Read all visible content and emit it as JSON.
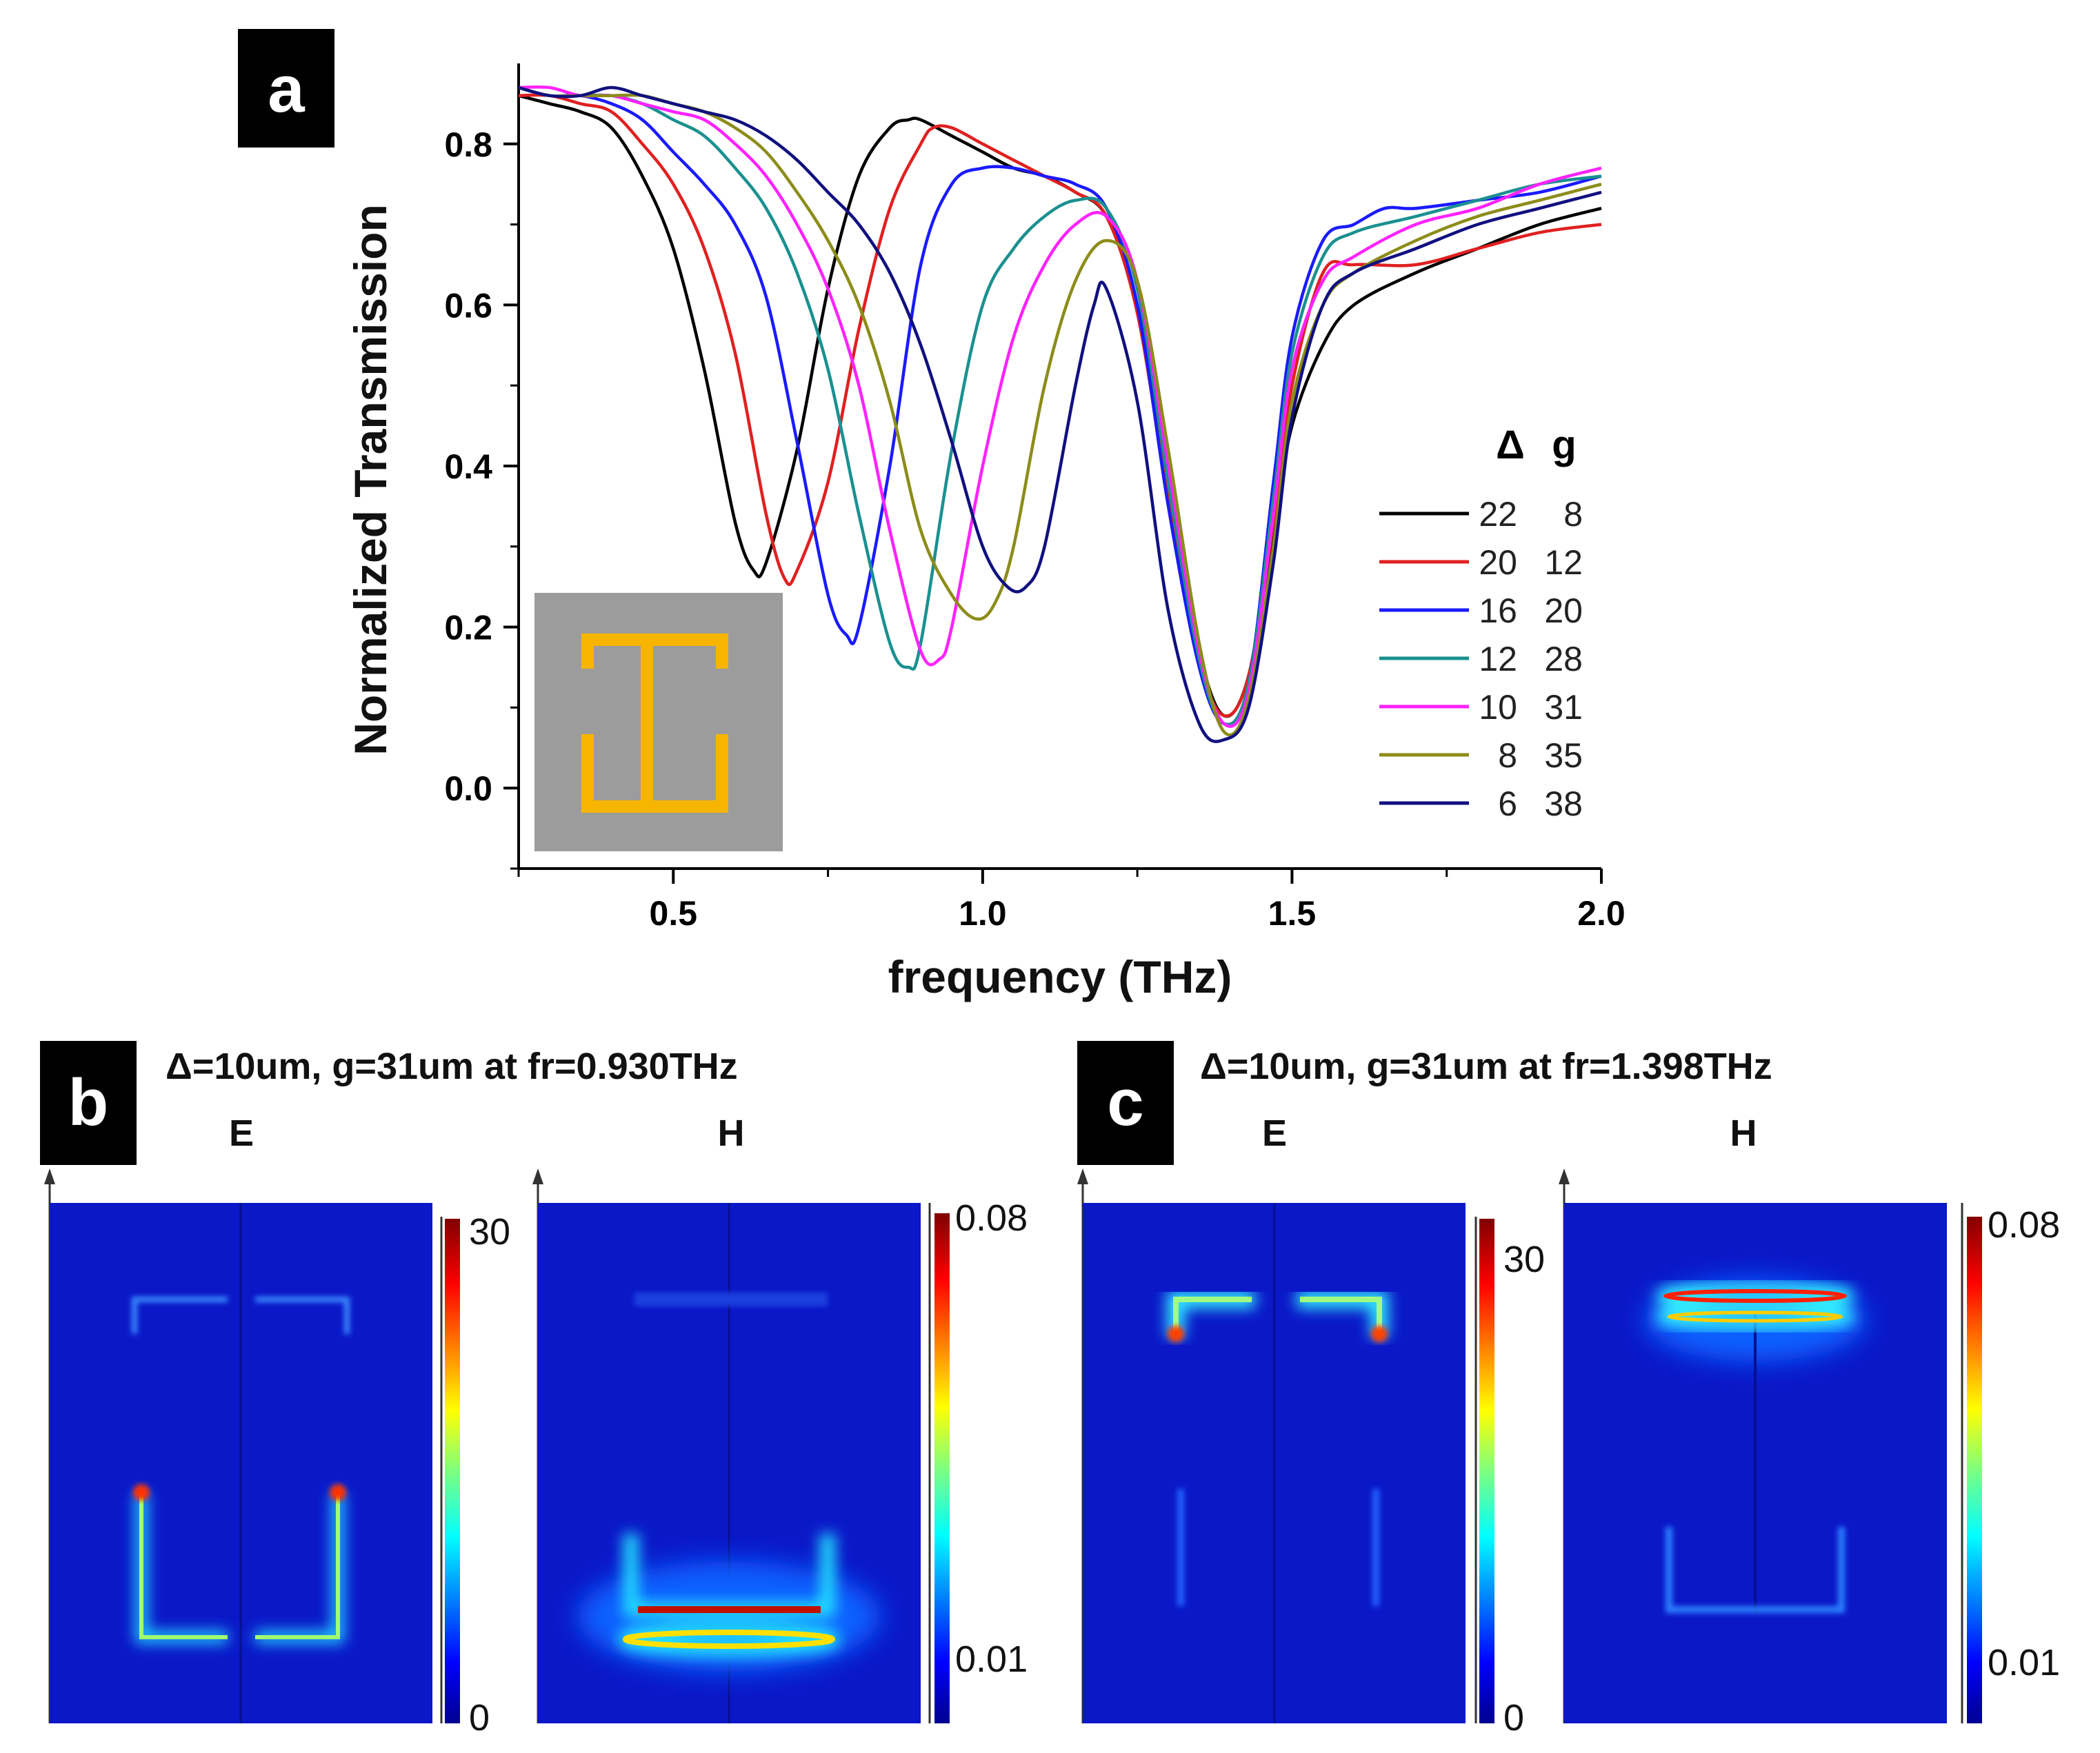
{
  "panels": {
    "a": {
      "label": "a"
    },
    "b": {
      "label": "b",
      "title": "Δ=10um, g=31um at fr=0.930THz",
      "e_label": "E",
      "h_label": "H",
      "e_scale": {
        "max": "30",
        "min": "0"
      },
      "h_scale": {
        "max": "0.08",
        "min": "0.01"
      }
    },
    "c": {
      "label": "c",
      "title": "Δ=10um, g=31um at fr=1.398THz",
      "e_label": "E",
      "h_label": "H",
      "e_scale": {
        "max": "30",
        "min": "0"
      },
      "h_scale": {
        "max": "0.08",
        "min": "0.01"
      }
    }
  },
  "legend": {
    "header_delta": "Δ",
    "header_g": "g"
  },
  "chart_data": {
    "type": "line",
    "title": "",
    "xlabel": "frequency (THz)",
    "ylabel": "Normalized Transmission",
    "xlim": [
      0.25,
      2.0
    ],
    "ylim": [
      -0.1,
      0.9
    ],
    "xticks": [
      0.5,
      1.0,
      1.5,
      2.0
    ],
    "xtick_labels": [
      "0.5",
      "1.0",
      "1.5",
      "2.0"
    ],
    "yticks": [
      0.0,
      0.2,
      0.4,
      0.6,
      0.8
    ],
    "ytick_labels": [
      "0.0",
      "0.2",
      "0.4",
      "0.6",
      "0.8"
    ],
    "grid": false,
    "legend_position": "right",
    "series": [
      {
        "name": "22  8",
        "delta": "22",
        "g": "8",
        "color": "#000000",
        "x": [
          0.25,
          0.3,
          0.35,
          0.4,
          0.45,
          0.5,
          0.55,
          0.6,
          0.63,
          0.65,
          0.7,
          0.75,
          0.8,
          0.85,
          0.88,
          0.9,
          0.95,
          1.0,
          1.05,
          1.1,
          1.15,
          1.2,
          1.25,
          1.3,
          1.35,
          1.39,
          1.43,
          1.47,
          1.5,
          1.55,
          1.6,
          1.7,
          1.8,
          1.9,
          2.0
        ],
        "y": [
          0.86,
          0.85,
          0.84,
          0.82,
          0.76,
          0.67,
          0.52,
          0.33,
          0.27,
          0.28,
          0.42,
          0.62,
          0.76,
          0.82,
          0.83,
          0.83,
          0.81,
          0.79,
          0.77,
          0.76,
          0.74,
          0.71,
          0.6,
          0.38,
          0.17,
          0.09,
          0.14,
          0.32,
          0.45,
          0.55,
          0.6,
          0.64,
          0.67,
          0.7,
          0.72
        ]
      },
      {
        "name": "20  12",
        "delta": "20",
        "g": "12",
        "color": "#e02020",
        "x": [
          0.25,
          0.3,
          0.35,
          0.4,
          0.45,
          0.5,
          0.55,
          0.6,
          0.65,
          0.68,
          0.7,
          0.75,
          0.8,
          0.85,
          0.9,
          0.92,
          0.95,
          1.0,
          1.05,
          1.1,
          1.15,
          1.2,
          1.25,
          1.3,
          1.35,
          1.39,
          1.43,
          1.47,
          1.5,
          1.55,
          1.6,
          1.7,
          1.8,
          1.9,
          2.0
        ],
        "y": [
          0.86,
          0.86,
          0.85,
          0.84,
          0.8,
          0.75,
          0.67,
          0.54,
          0.34,
          0.26,
          0.27,
          0.38,
          0.57,
          0.72,
          0.8,
          0.82,
          0.82,
          0.8,
          0.78,
          0.76,
          0.74,
          0.71,
          0.59,
          0.36,
          0.16,
          0.09,
          0.14,
          0.33,
          0.5,
          0.64,
          0.65,
          0.65,
          0.67,
          0.69,
          0.7
        ]
      },
      {
        "name": "16  20",
        "delta": "16",
        "g": "20",
        "color": "#1a1aff",
        "x": [
          0.25,
          0.3,
          0.35,
          0.4,
          0.45,
          0.5,
          0.55,
          0.6,
          0.65,
          0.7,
          0.75,
          0.78,
          0.8,
          0.85,
          0.9,
          0.95,
          1.0,
          1.05,
          1.1,
          1.15,
          1.2,
          1.25,
          1.3,
          1.35,
          1.39,
          1.43,
          1.47,
          1.5,
          1.55,
          1.6,
          1.65,
          1.7,
          1.8,
          1.9,
          2.0
        ],
        "y": [
          0.87,
          0.86,
          0.86,
          0.85,
          0.83,
          0.79,
          0.75,
          0.7,
          0.61,
          0.43,
          0.24,
          0.19,
          0.2,
          0.4,
          0.65,
          0.75,
          0.77,
          0.77,
          0.76,
          0.75,
          0.72,
          0.6,
          0.35,
          0.15,
          0.08,
          0.13,
          0.38,
          0.56,
          0.68,
          0.7,
          0.72,
          0.72,
          0.73,
          0.74,
          0.76
        ]
      },
      {
        "name": "12  28",
        "delta": "12",
        "g": "28",
        "color": "#1a9090",
        "x": [
          0.25,
          0.3,
          0.35,
          0.4,
          0.45,
          0.5,
          0.55,
          0.6,
          0.65,
          0.7,
          0.75,
          0.8,
          0.85,
          0.88,
          0.9,
          0.95,
          1.0,
          1.05,
          1.1,
          1.15,
          1.2,
          1.25,
          1.3,
          1.35,
          1.39,
          1.43,
          1.47,
          1.5,
          1.55,
          1.6,
          1.7,
          1.8,
          1.9,
          2.0
        ],
        "y": [
          0.87,
          0.86,
          0.86,
          0.86,
          0.85,
          0.83,
          0.81,
          0.77,
          0.72,
          0.64,
          0.52,
          0.34,
          0.18,
          0.15,
          0.18,
          0.42,
          0.6,
          0.67,
          0.71,
          0.73,
          0.72,
          0.62,
          0.38,
          0.16,
          0.08,
          0.13,
          0.36,
          0.54,
          0.66,
          0.69,
          0.71,
          0.73,
          0.75,
          0.76
        ]
      },
      {
        "name": "10  31",
        "delta": "10",
        "g": "31",
        "color": "#ff22ff",
        "x": [
          0.25,
          0.3,
          0.35,
          0.4,
          0.45,
          0.5,
          0.55,
          0.6,
          0.65,
          0.7,
          0.75,
          0.8,
          0.85,
          0.9,
          0.93,
          0.95,
          1.0,
          1.05,
          1.1,
          1.15,
          1.2,
          1.25,
          1.3,
          1.35,
          1.39,
          1.43,
          1.47,
          1.5,
          1.55,
          1.6,
          1.7,
          1.8,
          1.9,
          2.0
        ],
        "y": [
          0.87,
          0.87,
          0.86,
          0.86,
          0.85,
          0.84,
          0.83,
          0.8,
          0.76,
          0.7,
          0.62,
          0.5,
          0.32,
          0.17,
          0.16,
          0.2,
          0.4,
          0.56,
          0.65,
          0.7,
          0.71,
          0.63,
          0.4,
          0.17,
          0.08,
          0.12,
          0.34,
          0.52,
          0.63,
          0.66,
          0.7,
          0.72,
          0.75,
          0.77
        ]
      },
      {
        "name": "8  35",
        "delta": "8",
        "g": "35",
        "color": "#8c8c1a",
        "x": [
          0.25,
          0.3,
          0.35,
          0.4,
          0.45,
          0.5,
          0.55,
          0.6,
          0.65,
          0.7,
          0.75,
          0.8,
          0.85,
          0.9,
          0.95,
          0.99,
          1.02,
          1.05,
          1.1,
          1.15,
          1.2,
          1.25,
          1.3,
          1.35,
          1.39,
          1.43,
          1.47,
          1.5,
          1.55,
          1.6,
          1.7,
          1.8,
          1.9,
          2.0
        ],
        "y": [
          0.87,
          0.86,
          0.86,
          0.86,
          0.86,
          0.85,
          0.84,
          0.82,
          0.79,
          0.74,
          0.68,
          0.6,
          0.48,
          0.32,
          0.24,
          0.21,
          0.23,
          0.3,
          0.5,
          0.63,
          0.68,
          0.63,
          0.42,
          0.18,
          0.07,
          0.11,
          0.3,
          0.48,
          0.6,
          0.64,
          0.68,
          0.71,
          0.73,
          0.75
        ]
      },
      {
        "name": "6  38",
        "delta": "6",
        "g": "38",
        "color": "#101080",
        "x": [
          0.25,
          0.3,
          0.35,
          0.4,
          0.45,
          0.5,
          0.55,
          0.6,
          0.65,
          0.7,
          0.75,
          0.8,
          0.85,
          0.9,
          0.95,
          1.0,
          1.04,
          1.07,
          1.1,
          1.15,
          1.18,
          1.2,
          1.25,
          1.3,
          1.35,
          1.39,
          1.43,
          1.47,
          1.5,
          1.55,
          1.6,
          1.7,
          1.8,
          1.9,
          2.0
        ],
        "y": [
          0.87,
          0.86,
          0.86,
          0.87,
          0.86,
          0.85,
          0.84,
          0.83,
          0.81,
          0.78,
          0.74,
          0.7,
          0.64,
          0.55,
          0.43,
          0.3,
          0.25,
          0.25,
          0.3,
          0.5,
          0.6,
          0.62,
          0.48,
          0.22,
          0.08,
          0.06,
          0.1,
          0.28,
          0.46,
          0.6,
          0.64,
          0.67,
          0.7,
          0.72,
          0.74
        ]
      }
    ]
  }
}
